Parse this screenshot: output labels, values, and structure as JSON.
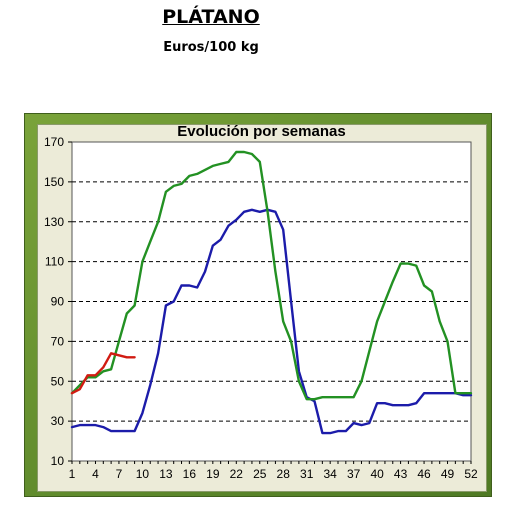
{
  "header": {
    "title": "PLÁTANO",
    "subtitle": "Euros/100 kg"
  },
  "chart_data": {
    "type": "line",
    "title": "Evolución por semanas",
    "xlabel": "",
    "ylabel": "",
    "xlim": [
      1,
      52
    ],
    "ylim": [
      10,
      170
    ],
    "xticks": [
      1,
      4,
      7,
      10,
      13,
      16,
      19,
      22,
      25,
      28,
      31,
      34,
      37,
      40,
      43,
      46,
      49,
      52
    ],
    "yticks": [
      10,
      30,
      50,
      70,
      90,
      110,
      130,
      150,
      170
    ],
    "grid": "horizontal-dashed",
    "legend": "none",
    "series": [
      {
        "color": "#1c1caa",
        "points": [
          [
            1,
            27
          ],
          [
            2,
            28
          ],
          [
            3,
            28
          ],
          [
            4,
            28
          ],
          [
            5,
            27
          ],
          [
            6,
            25
          ],
          [
            7,
            25
          ],
          [
            8,
            25
          ],
          [
            9,
            25
          ],
          [
            10,
            34
          ],
          [
            11,
            48
          ],
          [
            12,
            64
          ],
          [
            13,
            88
          ],
          [
            14,
            90
          ],
          [
            15,
            98
          ],
          [
            16,
            98
          ],
          [
            17,
            97
          ],
          [
            18,
            105
          ],
          [
            19,
            118
          ],
          [
            20,
            121
          ],
          [
            21,
            128
          ],
          [
            22,
            131
          ],
          [
            23,
            135
          ],
          [
            24,
            136
          ],
          [
            25,
            135
          ],
          [
            26,
            136
          ],
          [
            27,
            135
          ],
          [
            28,
            126
          ],
          [
            29,
            90
          ],
          [
            30,
            55
          ],
          [
            31,
            42
          ],
          [
            32,
            40
          ],
          [
            33,
            24
          ],
          [
            34,
            24
          ],
          [
            35,
            25
          ],
          [
            36,
            25
          ],
          [
            37,
            29
          ],
          [
            38,
            28
          ],
          [
            39,
            29
          ],
          [
            40,
            39
          ],
          [
            41,
            39
          ],
          [
            42,
            38
          ],
          [
            43,
            38
          ],
          [
            44,
            38
          ],
          [
            45,
            39
          ],
          [
            46,
            44
          ],
          [
            47,
            44
          ],
          [
            48,
            44
          ],
          [
            49,
            44
          ],
          [
            50,
            44
          ],
          [
            51,
            43
          ],
          [
            52,
            43
          ]
        ]
      },
      {
        "color": "#239123",
        "points": [
          [
            1,
            44
          ],
          [
            2,
            48
          ],
          [
            3,
            52
          ],
          [
            4,
            52
          ],
          [
            5,
            55
          ],
          [
            6,
            56
          ],
          [
            7,
            70
          ],
          [
            8,
            84
          ],
          [
            9,
            88
          ],
          [
            10,
            110
          ],
          [
            11,
            120
          ],
          [
            12,
            130
          ],
          [
            13,
            145
          ],
          [
            14,
            148
          ],
          [
            15,
            149
          ],
          [
            16,
            153
          ],
          [
            17,
            154
          ],
          [
            18,
            156
          ],
          [
            19,
            158
          ],
          [
            20,
            159
          ],
          [
            21,
            160
          ],
          [
            22,
            165
          ],
          [
            23,
            165
          ],
          [
            24,
            164
          ],
          [
            25,
            160
          ],
          [
            26,
            135
          ],
          [
            27,
            105
          ],
          [
            28,
            80
          ],
          [
            29,
            70
          ],
          [
            30,
            50
          ],
          [
            31,
            41
          ],
          [
            32,
            41
          ],
          [
            33,
            42
          ],
          [
            34,
            42
          ],
          [
            35,
            42
          ],
          [
            36,
            42
          ],
          [
            37,
            42
          ],
          [
            38,
            50
          ],
          [
            39,
            65
          ],
          [
            40,
            80
          ],
          [
            41,
            90
          ],
          [
            42,
            100
          ],
          [
            43,
            109
          ],
          [
            44,
            109
          ],
          [
            45,
            108
          ],
          [
            46,
            98
          ],
          [
            47,
            95
          ],
          [
            48,
            80
          ],
          [
            49,
            70
          ],
          [
            50,
            44
          ],
          [
            51,
            44
          ],
          [
            52,
            44
          ]
        ]
      },
      {
        "color": "#d11b12",
        "points": [
          [
            1,
            44
          ],
          [
            2,
            46
          ],
          [
            3,
            53
          ],
          [
            4,
            53
          ],
          [
            5,
            57
          ],
          [
            6,
            64
          ],
          [
            7,
            63
          ],
          [
            8,
            62
          ],
          [
            9,
            62
          ]
        ]
      }
    ]
  }
}
